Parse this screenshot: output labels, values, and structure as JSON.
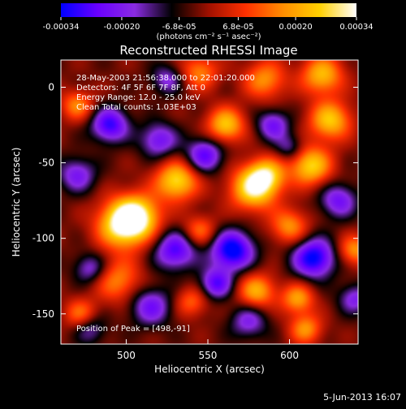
{
  "colorbar": {
    "tick_labels": [
      "-0.00034",
      "-0.00020",
      "-6.8e-05",
      "6.8e-05",
      "0.00020",
      "0.00034"
    ],
    "tick_values": [
      -0.00034,
      -0.0002,
      -6.8e-05,
      6.8e-05,
      0.0002,
      0.00034
    ],
    "unit_label": "(photons cm⁻² s⁻¹ asec⁻²)",
    "colors": [
      "#0000ff",
      "#6a00ff",
      "#8a2be2",
      "#000000",
      "#a01000",
      "#ff3000",
      "#ff8c00",
      "#ffd000",
      "#ffffff"
    ]
  },
  "chart_data": {
    "type": "heatmap",
    "title": "Reconstructed RHESSI Image",
    "xlabel": "Heliocentric X (arcsec)",
    "ylabel": "Heliocentric Y (arcsec)",
    "xlim": [
      460,
      642
    ],
    "ylim": [
      -170,
      18
    ],
    "x_ticks": [
      500,
      550,
      600
    ],
    "y_ticks": [
      0,
      -50,
      -100,
      -150
    ],
    "annotations": [
      "28-May-2003 21:56:38.000 to 22:01:20.000",
      "Detectors: 4F 5F 6F 7F 8F, Att 0",
      "Energy Range: 12.0 - 25.0 keV",
      "Clean    Total counts: 1.03E+03"
    ],
    "peak_label": "Position of Peak = [498,-91]",
    "peak": [
      498,
      -91
    ],
    "blobs": [
      {
        "x": 498,
        "y": -91,
        "v": 1.0,
        "s": 11
      },
      {
        "x": 507,
        "y": -85,
        "v": 0.8,
        "s": 10
      },
      {
        "x": 531,
        "y": -62,
        "v": 0.9,
        "s": 9
      },
      {
        "x": 578,
        "y": -67,
        "v": 0.95,
        "s": 10
      },
      {
        "x": 586,
        "y": -58,
        "v": 0.7,
        "s": 8
      },
      {
        "x": 561,
        "y": -25,
        "v": 0.8,
        "s": 8
      },
      {
        "x": 613,
        "y": -52,
        "v": 0.85,
        "s": 9
      },
      {
        "x": 625,
        "y": -22,
        "v": 0.8,
        "s": 9
      },
      {
        "x": 620,
        "y": 8,
        "v": 0.75,
        "s": 9
      },
      {
        "x": 585,
        "y": 5,
        "v": 0.6,
        "s": 9
      },
      {
        "x": 545,
        "y": 10,
        "v": 0.55,
        "s": 8
      },
      {
        "x": 470,
        "y": -12,
        "v": 0.55,
        "s": 7
      },
      {
        "x": 495,
        "y": -128,
        "v": 0.55,
        "s": 10
      },
      {
        "x": 580,
        "y": -135,
        "v": 0.7,
        "s": 8
      },
      {
        "x": 605,
        "y": -140,
        "v": 0.65,
        "s": 7
      },
      {
        "x": 600,
        "y": -92,
        "v": 0.6,
        "s": 8
      },
      {
        "x": 545,
        "y": -95,
        "v": 0.5,
        "s": 7
      },
      {
        "x": 610,
        "y": -160,
        "v": 0.6,
        "s": 7
      },
      {
        "x": 472,
        "y": -150,
        "v": 0.5,
        "s": 7
      },
      {
        "x": 640,
        "y": -108,
        "v": 0.6,
        "s": 7
      },
      {
        "x": 540,
        "y": -142,
        "v": 0.45,
        "s": 7
      },
      {
        "x": 490,
        "y": -25,
        "v": -0.8,
        "s": 8
      },
      {
        "x": 548,
        "y": -45,
        "v": -0.7,
        "s": 8
      },
      {
        "x": 590,
        "y": -25,
        "v": -0.6,
        "s": 7
      },
      {
        "x": 565,
        "y": -108,
        "v": -1.0,
        "s": 9
      },
      {
        "x": 615,
        "y": -113,
        "v": -0.95,
        "s": 9
      },
      {
        "x": 530,
        "y": -108,
        "v": -0.75,
        "s": 9
      },
      {
        "x": 515,
        "y": -145,
        "v": -0.6,
        "s": 9
      },
      {
        "x": 470,
        "y": -58,
        "v": -0.55,
        "s": 8
      },
      {
        "x": 478,
        "y": -120,
        "v": -0.5,
        "s": 7
      },
      {
        "x": 630,
        "y": -75,
        "v": -0.6,
        "s": 8
      },
      {
        "x": 575,
        "y": -155,
        "v": -0.5,
        "s": 8
      },
      {
        "x": 520,
        "y": -35,
        "v": -0.6,
        "s": 8
      },
      {
        "x": 525,
        "y": 5,
        "v": -0.45,
        "s": 7
      },
      {
        "x": 555,
        "y": -130,
        "v": -0.7,
        "s": 7
      },
      {
        "x": 640,
        "y": -140,
        "v": -0.5,
        "s": 7
      },
      {
        "x": 478,
        "y": -160,
        "v": -0.4,
        "s": 7
      },
      {
        "x": 600,
        "y": -40,
        "v": -0.4,
        "s": 6
      }
    ]
  },
  "timestamp": "5-Jun-2013 16:07"
}
